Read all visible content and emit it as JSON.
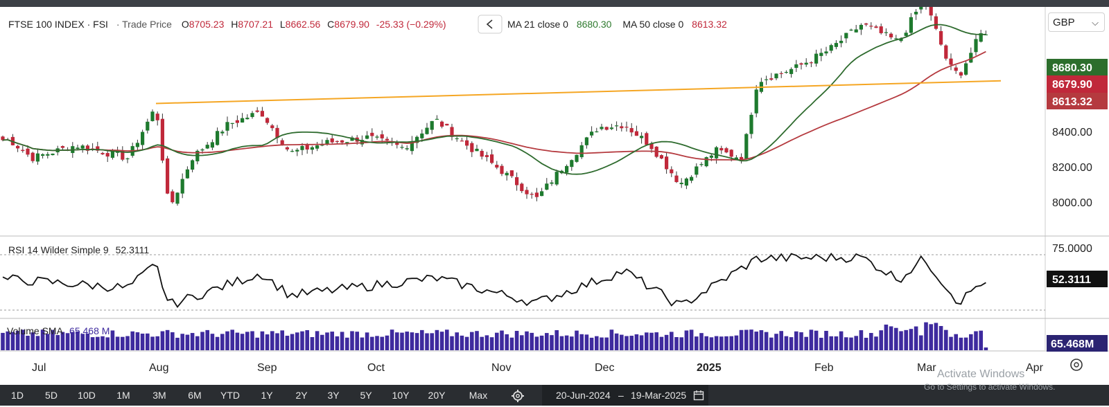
{
  "header": {
    "symbol": "FTSE 100 INDEX · FSI",
    "price_type": "· Trade Price",
    "open_label": "O",
    "open": "8705.23",
    "high_label": "H",
    "high": "8707.21",
    "low_label": "L",
    "low": "8662.56",
    "close_label": "C",
    "close": "8679.90",
    "change": "-25.33 (−0.29%)",
    "ma21_label": "MA 21 close 0",
    "ma21_value": "8680.30",
    "ma50_label": "MA 50 close 0",
    "ma50_value": "8613.32",
    "collapse_icon": "chevron-left-icon"
  },
  "currency": "GBP",
  "price_axis": {
    "ticks": [
      "8400.00",
      "8200.00",
      "8000.00"
    ],
    "badges": {
      "ma21": "8680.30",
      "last": "8679.90",
      "ma50": "8613.32"
    }
  },
  "rsi": {
    "label": "RSI 14 Wilder Simple 9",
    "value": "52.3111",
    "upper_tick": "75.0000",
    "last_badge": "52.3111"
  },
  "volume": {
    "label": "Volume SMA",
    "value": "65.468 M",
    "last_badge": "65.468M"
  },
  "time_axis": {
    "labels": [
      "Jul",
      "Aug",
      "Sep",
      "Oct",
      "Nov",
      "Dec",
      "2025",
      "Feb",
      "Mar",
      "Apr"
    ]
  },
  "settings_icon": "target-icon",
  "range_buttons": [
    "1D",
    "5D",
    "10D",
    "1M",
    "3M",
    "6M",
    "YTD",
    "1Y",
    "2Y",
    "3Y",
    "5Y",
    "10Y",
    "20Y",
    "Max"
  ],
  "gear_icon": "gear-icon",
  "date_range": {
    "start": "20-Jun-2024",
    "sep": "–",
    "end": "19-Mar-2025"
  },
  "calendar_icon": "calendar-icon",
  "watermark": {
    "line1": "Activate Windows",
    "line2": "Go to Settings to activate Windows."
  },
  "colors": {
    "up": "#1e7a2e",
    "down": "#c0283a",
    "ma21": "#2e6b2e",
    "ma50": "#b53a3f",
    "trendline": "#f5a623",
    "rsi": "#111111",
    "volume": "#3e2a9e",
    "badge_ma21": "#2c6e2c",
    "badge_last": "#c0283a",
    "badge_ma50": "#b53a3f"
  },
  "chart_data": [
    {
      "type": "candlestick",
      "title": "FTSE 100 INDEX · FSI",
      "ylim": [
        7900,
        8760
      ],
      "series": [
        {
          "name": "MA 21 close 0",
          "last": 8680.3
        },
        {
          "name": "MA 50 close 0",
          "last": 8613.32
        }
      ],
      "last_close": 8679.9,
      "date_range": [
        "20-Jun-2024",
        "19-Mar-2025"
      ],
      "anchors": [
        {
          "date": "Jun-20",
          "close": 8270
        },
        {
          "date": "Jul-01",
          "close": 8200
        },
        {
          "date": "Jul-12",
          "close": 8250
        },
        {
          "date": "Jul-25",
          "close": 8200
        },
        {
          "date": "Aug-01",
          "close": 8400
        },
        {
          "date": "Aug-05",
          "close": 8000
        },
        {
          "date": "Aug-12",
          "close": 8200
        },
        {
          "date": "Aug-23",
          "close": 8330
        },
        {
          "date": "Sep-02",
          "close": 8380
        },
        {
          "date": "Sep-10",
          "close": 8220
        },
        {
          "date": "Sep-20",
          "close": 8260
        },
        {
          "date": "Oct-01",
          "close": 8280
        },
        {
          "date": "Oct-10",
          "close": 8240
        },
        {
          "date": "Oct-18",
          "close": 8350
        },
        {
          "date": "Oct-25",
          "close": 8260
        },
        {
          "date": "Nov-04",
          "close": 8150
        },
        {
          "date": "Nov-14",
          "close": 8040
        },
        {
          "date": "Nov-22",
          "close": 8170
        },
        {
          "date": "Dec-02",
          "close": 8320
        },
        {
          "date": "Dec-10",
          "close": 8330
        },
        {
          "date": "Dec-18",
          "close": 8250
        },
        {
          "date": "Dec-27",
          "close": 8100
        },
        {
          "date": "Jan-06",
          "close": 8230
        },
        {
          "date": "Jan-13",
          "close": 8200
        },
        {
          "date": "Jan-17",
          "close": 8500
        },
        {
          "date": "Jan-27",
          "close": 8550
        },
        {
          "date": "Feb-05",
          "close": 8620
        },
        {
          "date": "Feb-14",
          "close": 8720
        },
        {
          "date": "Feb-24",
          "close": 8650
        },
        {
          "date": "Mar-03",
          "close": 8820
        },
        {
          "date": "Mar-10",
          "close": 8560
        },
        {
          "date": "Mar-13",
          "close": 8520
        },
        {
          "date": "Mar-19",
          "close": 8679.9
        }
      ],
      "trendline": [
        {
          "date": "Aug-01",
          "value": 8412
        },
        {
          "date": "Mar-24",
          "value": 8500
        }
      ]
    },
    {
      "type": "line",
      "title": "RSI 14 Wilder Simple 9",
      "last": 52.3111,
      "levels": [
        75,
        30
      ],
      "anchors": [
        {
          "date": "Jun-20",
          "value": 55
        },
        {
          "date": "Jul-25",
          "value": 48
        },
        {
          "date": "Aug-01",
          "value": 67
        },
        {
          "date": "Aug-05",
          "value": 34
        },
        {
          "date": "Sep-02",
          "value": 60
        },
        {
          "date": "Sep-10",
          "value": 42
        },
        {
          "date": "Oct-18",
          "value": 56
        },
        {
          "date": "Nov-14",
          "value": 36
        },
        {
          "date": "Dec-10",
          "value": 62
        },
        {
          "date": "Dec-27",
          "value": 33
        },
        {
          "date": "Jan-17",
          "value": 72
        },
        {
          "date": "Feb-14",
          "value": 73
        },
        {
          "date": "Feb-24",
          "value": 55
        },
        {
          "date": "Mar-03",
          "value": 72
        },
        {
          "date": "Mar-13",
          "value": 36
        },
        {
          "date": "Mar-19",
          "value": 52.3111
        }
      ]
    },
    {
      "type": "bar",
      "title": "Volume SMA",
      "last": "65.468 M",
      "note": "daily volume bars, spikes near late Feb/early Mar"
    }
  ]
}
